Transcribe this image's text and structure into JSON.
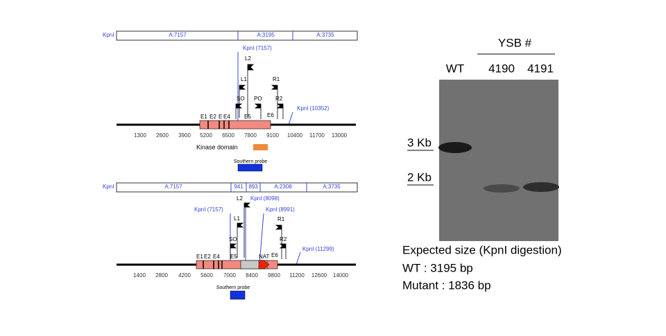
{
  "top_map": {
    "restriction_bar": {
      "enzyme": "KpnI",
      "fragments": [
        "A:7157",
        "A:3195",
        "A:3735"
      ]
    },
    "sites": [
      "KpnI (7157)",
      "KpnI (10352)"
    ],
    "primers": [
      "L2",
      "L1",
      "SO",
      "PO",
      "R1",
      "R2"
    ],
    "exons": [
      "E1",
      "E2",
      "E",
      "E4",
      "E5",
      "E6"
    ],
    "scale": [
      1300,
      2600,
      3900,
      5200,
      6500,
      7800,
      9100,
      10400,
      11700,
      13000
    ],
    "legend": [
      "Kinase domain",
      "Southern probe"
    ]
  },
  "bottom_map": {
    "restriction_bar": {
      "enzyme": "KpnI",
      "fragments": [
        "A:7157",
        "941",
        "893",
        "A:2308",
        "A:3735"
      ]
    },
    "sites": [
      "KpnI (7157)",
      "KpnI (8098)",
      "KpnI (8991)",
      "KpnI (11299)"
    ],
    "primers": [
      "L2",
      "L1",
      "SO",
      "R1",
      "R2"
    ],
    "exons": [
      "E1",
      "E2",
      "E4",
      "E5",
      "NAT",
      "E6"
    ],
    "scale": [
      1400,
      2800,
      4200,
      5600,
      7000,
      8400,
      9800,
      11200,
      12600,
      14000
    ],
    "legend": [
      "Southern probe"
    ]
  },
  "blot": {
    "header": "YSB #",
    "lanes": [
      "WT",
      "4190",
      "4191"
    ],
    "markers": [
      "3 Kb",
      "2 Kb"
    ]
  },
  "caption": [
    "Expected size (KpnI digestion)",
    "WT : 3195 bp",
    "Mutant : 1836 bp"
  ]
}
